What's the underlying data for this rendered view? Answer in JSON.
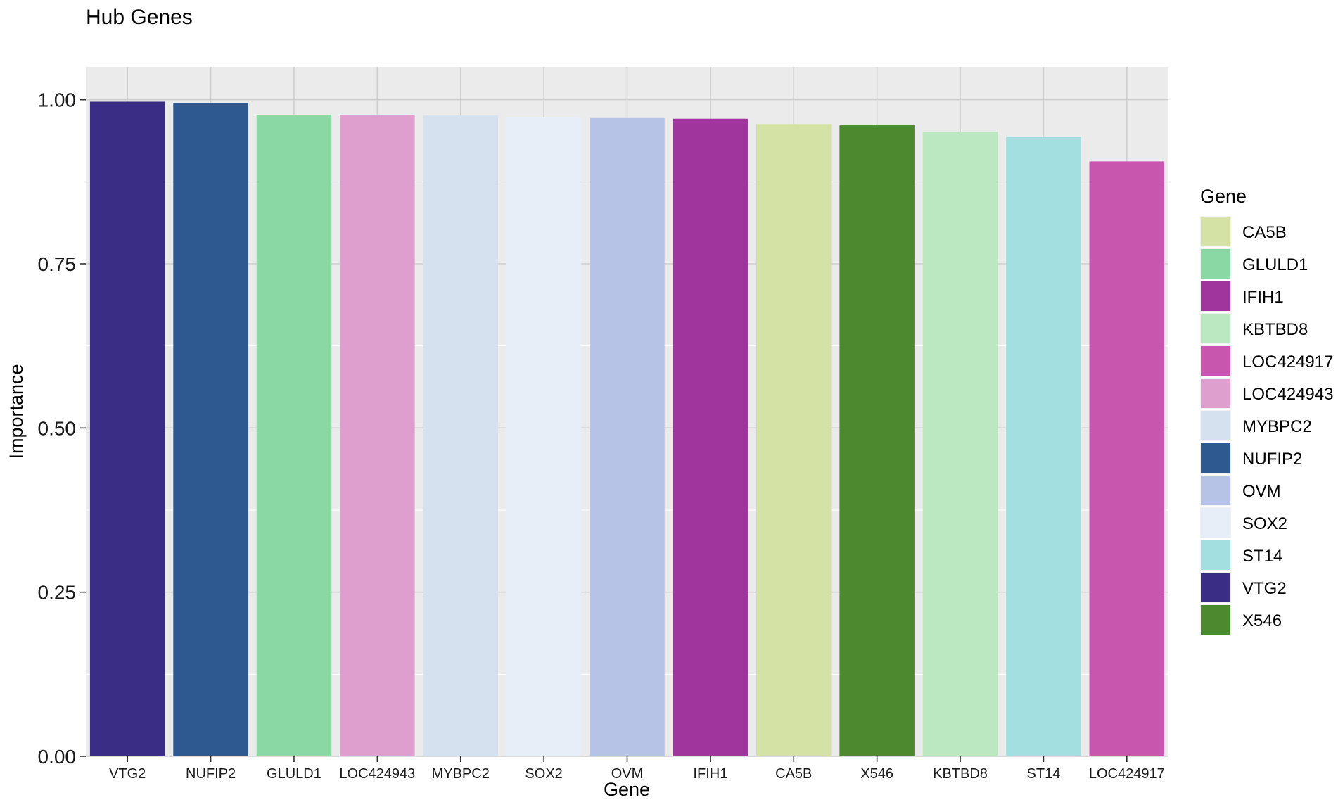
{
  "chart_data": {
    "type": "bar",
    "title": "Hub Genes",
    "xlabel": "Gene",
    "ylabel": "Importance",
    "ylim": [
      0,
      1.05
    ],
    "yticks": [
      0.0,
      0.25,
      0.5,
      0.75,
      1.0
    ],
    "ytick_labels": [
      "0.00",
      "0.25",
      "0.50",
      "0.75",
      "1.00"
    ],
    "grid": true,
    "panel_background": "#EBEBEB",
    "legend": {
      "title": "Gene",
      "position": "right",
      "entries": [
        "CA5B",
        "GLULD1",
        "IFIH1",
        "KBTBD8",
        "LOC424917",
        "LOC424943",
        "MYBPC2",
        "NUFIP2",
        "OVM",
        "SOX2",
        "ST14",
        "VTG2",
        "X546"
      ]
    },
    "categories": [
      "VTG2",
      "NUFIP2",
      "GLULD1",
      "LOC424943",
      "MYBPC2",
      "SOX2",
      "OVM",
      "IFIH1",
      "CA5B",
      "X546",
      "KBTBD8",
      "ST14",
      "LOC424917"
    ],
    "values": [
      0.997,
      0.995,
      0.977,
      0.977,
      0.976,
      0.973,
      0.972,
      0.971,
      0.963,
      0.961,
      0.951,
      0.943,
      0.906
    ],
    "colors": {
      "VTG2": "#3A2D85",
      "NUFIP2": "#2E5990",
      "GLULD1": "#8AD8A3",
      "LOC424943": "#DE9ECE",
      "MYBPC2": "#D6E1F0",
      "SOX2": "#E7EEF7",
      "OVM": "#B7C2E7",
      "IFIH1": "#A0359E",
      "CA5B": "#D4E2A6",
      "X546": "#4D8A2F",
      "KBTBD8": "#BCE8C1",
      "ST14": "#A3DFE0",
      "LOC424917": "#C856AE"
    }
  }
}
